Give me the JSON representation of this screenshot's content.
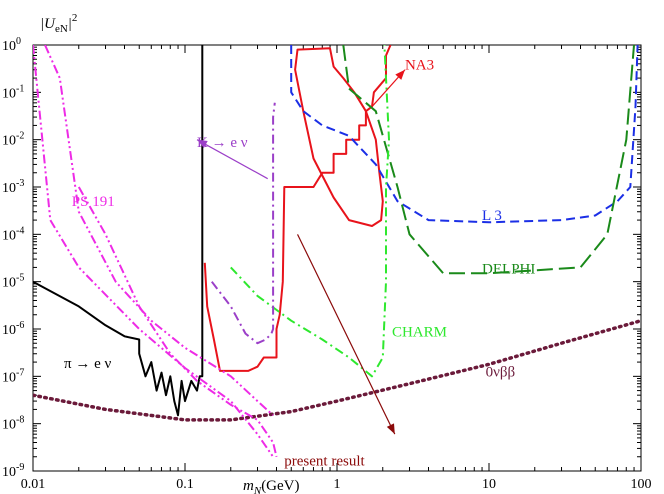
{
  "chart_data": {
    "type": "line",
    "title": "",
    "xlabel": "m_N(GeV)",
    "ylabel": "|U_eN|^2",
    "xscale": "log",
    "yscale": "log",
    "xlim": [
      0.01,
      100
    ],
    "ylim": [
      1e-09,
      1
    ],
    "grid": false,
    "x_tick_labels": [
      {
        "value": 0.01,
        "label": "0.01"
      },
      {
        "value": 0.1,
        "label": "0.1"
      },
      {
        "value": 1,
        "label": "1"
      },
      {
        "value": 10,
        "label": "10"
      },
      {
        "value": 100,
        "label": "100"
      }
    ],
    "y_tick_labels": [
      {
        "exp": -9,
        "label": "10"
      },
      {
        "exp": -8,
        "label": "10"
      },
      {
        "exp": -7,
        "label": "10"
      },
      {
        "exp": -6,
        "label": "10"
      },
      {
        "exp": -5,
        "label": "10"
      },
      {
        "exp": -4,
        "label": "10"
      },
      {
        "exp": -3,
        "label": "10"
      },
      {
        "exp": -2,
        "label": "10"
      },
      {
        "exp": -1,
        "label": "10"
      },
      {
        "exp": 0,
        "label": "10"
      }
    ],
    "series": [
      {
        "name": "present result",
        "color": "#e8131b",
        "style": "solid",
        "points": [
          [
            0.135,
            2.5e-05
          ],
          [
            0.14,
            3e-06
          ],
          [
            0.155,
            6e-07
          ],
          [
            0.17,
            1.3e-07
          ],
          [
            0.26,
            1.3e-07
          ],
          [
            0.3,
            1.6e-07
          ],
          [
            0.33,
            2.5e-07
          ],
          [
            0.36,
            2.5e-07
          ],
          [
            0.39,
            2.5e-07
          ],
          [
            0.4,
            2.5e-07
          ],
          [
            0.4,
            1e-06
          ],
          [
            0.42,
            2e-06
          ],
          [
            0.44,
            1e-05
          ],
          [
            0.45,
            0.001
          ],
          [
            0.7,
            0.001
          ],
          [
            0.8,
            0.002
          ],
          [
            0.95,
            0.002
          ],
          [
            0.95,
            0.005
          ],
          [
            1.15,
            0.005
          ],
          [
            1.15,
            0.01
          ],
          [
            1.4,
            0.01
          ],
          [
            1.4,
            0.02
          ],
          [
            1.55,
            0.02
          ],
          [
            1.55,
            0.04
          ],
          [
            1.7,
            0.05
          ],
          [
            1.75,
            0.1
          ],
          [
            2.1,
            0.2
          ],
          [
            2.1,
            0.6
          ],
          [
            2.25,
            1.0
          ]
        ]
      },
      {
        "name": "NA3",
        "color": "#e8131b",
        "style": "solid",
        "closed": true,
        "points": [
          [
            0.55,
            0.8
          ],
          [
            0.9,
            0.85
          ],
          [
            0.95,
            0.35
          ],
          [
            1.1,
            0.2
          ],
          [
            1.3,
            0.1
          ],
          [
            1.55,
            0.04
          ],
          [
            1.8,
            0.01
          ],
          [
            1.9,
            0.002
          ],
          [
            2.0,
            0.0005
          ],
          [
            1.95,
            0.0002
          ],
          [
            1.7,
            0.00015
          ],
          [
            1.2,
            0.0002
          ],
          [
            0.95,
            0.0006
          ],
          [
            0.7,
            0.004
          ],
          [
            0.6,
            0.04
          ],
          [
            0.53,
            0.3
          ]
        ]
      },
      {
        "name": "L 3",
        "color": "#1b2fe6",
        "style": "dash",
        "points": [
          [
            0.5,
            1.0
          ],
          [
            0.5,
            0.1
          ],
          [
            0.6,
            0.04
          ],
          [
            0.8,
            0.02
          ],
          [
            1.2,
            0.012
          ],
          [
            1.8,
            0.003
          ],
          [
            2.5,
            0.0005
          ],
          [
            4,
            0.0002
          ],
          [
            10,
            0.00018
          ],
          [
            30,
            0.0002
          ],
          [
            50,
            0.00025
          ],
          [
            70,
            0.0005
          ],
          [
            85,
            0.001
          ],
          [
            92,
            0.05
          ],
          [
            95,
            1.0
          ]
        ]
      },
      {
        "name": "DELPHI",
        "color": "#1a8a1a",
        "style": "longdash",
        "points": [
          [
            1.1,
            1.0
          ],
          [
            1.2,
            0.12
          ],
          [
            1.8,
            0.04
          ],
          [
            2.5,
            0.001
          ],
          [
            3.0,
            0.0001
          ],
          [
            5,
            1.5e-05
          ],
          [
            10,
            1.5e-05
          ],
          [
            40,
            2e-05
          ],
          [
            60,
            0.0001
          ],
          [
            80,
            0.01
          ],
          [
            90,
            1.0
          ]
        ]
      },
      {
        "name": "CHARM",
        "color": "#2ee82e",
        "style": "dashdot",
        "points": [
          [
            0.2,
            2e-05
          ],
          [
            0.3,
            5e-06
          ],
          [
            0.5,
            1.5e-06
          ],
          [
            0.8,
            6e-07
          ],
          [
            1.2,
            2.5e-07
          ],
          [
            1.7,
            1e-07
          ],
          [
            2.0,
            2.5e-07
          ],
          [
            2.1,
            1e-05
          ],
          [
            2.1,
            0.001
          ],
          [
            2.2,
            0.01
          ],
          [
            2.05,
            1.0
          ]
        ]
      },
      {
        "name": "0νββ",
        "color": "#6b1a3a",
        "style": "dot",
        "points": [
          [
            0.01,
            4e-08
          ],
          [
            0.03,
            2e-08
          ],
          [
            0.1,
            1.2e-08
          ],
          [
            0.2,
            1.2e-08
          ],
          [
            0.5,
            1.8e-08
          ],
          [
            1,
            3e-08
          ],
          [
            3,
            7e-08
          ],
          [
            10,
            1.8e-07
          ],
          [
            30,
            5e-07
          ],
          [
            100,
            1.5e-06
          ]
        ]
      },
      {
        "name": "π → e ν",
        "color": "#000000",
        "style": "solid",
        "points": [
          [
            0.01,
            1e-05
          ],
          [
            0.02,
            3e-06
          ],
          [
            0.03,
            1.2e-06
          ],
          [
            0.04,
            7e-07
          ],
          [
            0.05,
            6e-07
          ],
          [
            0.05,
            3e-07
          ],
          [
            0.055,
            1e-07
          ],
          [
            0.06,
            2e-07
          ],
          [
            0.065,
            5e-08
          ],
          [
            0.07,
            1.2e-07
          ],
          [
            0.075,
            4e-08
          ],
          [
            0.08,
            1e-07
          ],
          [
            0.085,
            3e-08
          ],
          [
            0.09,
            1.5e-08
          ],
          [
            0.095,
            8e-08
          ],
          [
            0.1,
            3e-08
          ],
          [
            0.11,
            8e-08
          ],
          [
            0.12,
            5e-08
          ],
          [
            0.125,
            1e-07
          ],
          [
            0.13,
            1e-07
          ],
          [
            0.13,
            1.0
          ]
        ]
      },
      {
        "name": "K → e ν",
        "color": "#9b3fc8",
        "style": "dashdot",
        "points": [
          [
            0.15,
            1e-05
          ],
          [
            0.2,
            3e-06
          ],
          [
            0.25,
            8e-07
          ],
          [
            0.3,
            5e-07
          ],
          [
            0.34,
            6e-07
          ],
          [
            0.37,
            8e-07
          ],
          [
            0.38,
            1e-06
          ],
          [
            0.38,
            0.001
          ],
          [
            0.38,
            0.03
          ],
          [
            0.39,
            0.06
          ]
        ]
      },
      {
        "name": "PS 191",
        "color": "#ee2be6",
        "style": "dashdotdot",
        "points": [
          [
            0.02,
            0.001
          ],
          [
            0.03,
            0.0001
          ],
          [
            0.05,
            3e-06
          ],
          [
            0.08,
            3e-07
          ],
          [
            0.12,
            8e-08
          ],
          [
            0.2,
            2.5e-08
          ],
          [
            0.3,
            1.2e-08
          ],
          [
            0.38,
            4e-09
          ],
          [
            0.4,
            2e-09
          ]
        ]
      },
      {
        "name": "PS 191",
        "color": "#ee2be6",
        "style": "dashdotdot",
        "points": [
          [
            0.012,
            1.0
          ],
          [
            0.015,
            0.2
          ],
          [
            0.02,
            0.0003
          ],
          [
            0.035,
            1e-05
          ],
          [
            0.06,
            1.5e-06
          ],
          [
            0.1,
            4e-07
          ],
          [
            0.2,
            1e-07
          ],
          [
            0.3,
            3e-08
          ],
          [
            0.38,
            1.5e-08
          ]
        ]
      },
      {
        "name": "PS 191",
        "color": "#ee2be6",
        "style": "dashdotdot",
        "points": [
          [
            0.01,
            1.0
          ],
          [
            0.013,
            0.0002
          ],
          [
            0.02,
            2e-05
          ],
          [
            0.05,
            1e-06
          ],
          [
            0.1,
            1.5e-07
          ],
          [
            0.2,
            3e-08
          ],
          [
            0.3,
            6e-09
          ],
          [
            0.38,
            2e-09
          ]
        ]
      }
    ],
    "annotations": [
      {
        "text": "NA3",
        "color": "#e8131b",
        "x": 2.8,
        "y": 0.3
      },
      {
        "text": "L 3",
        "color": "#1b2fe6",
        "x": 9.0,
        "y": 0.0002
      },
      {
        "text": "DELPHI",
        "color": "#1a8a1a",
        "x": 9.0,
        "y": 1.5e-05
      },
      {
        "text": "CHARM",
        "color": "#2ee82e",
        "x": 2.3,
        "y": 7e-07
      },
      {
        "text": "0νββ",
        "color": "#6b1a3a",
        "x": 9.5,
        "y": 1e-07
      },
      {
        "text": "π → e ν",
        "color": "#000000",
        "x": 0.016,
        "y": 1.5e-07
      },
      {
        "text": "K → e ν",
        "color": "#9b3fc8",
        "x": 0.12,
        "y": 0.007
      },
      {
        "text": "PS 191",
        "color": "#ee2be6",
        "x": 0.018,
        "y": 0.0004
      },
      {
        "text": "present result",
        "color": "#8b0a0a",
        "x": 0.45,
        "y": 1.3e-09
      }
    ],
    "arrows": [
      {
        "label": "NA3",
        "color": "#e8131b",
        "from": [
          1.7,
          0.05
        ],
        "to": [
          2.8,
          0.3
        ]
      },
      {
        "label": "K → e ν",
        "color": "#9b3fc8",
        "from": [
          0.35,
          0.0015
        ],
        "to": [
          0.12,
          0.01
        ]
      },
      {
        "label": "present result",
        "color": "#8b0a0a",
        "from": [
          0.55,
          0.0001
        ],
        "to": [
          2.4,
          6e-09
        ]
      }
    ]
  }
}
